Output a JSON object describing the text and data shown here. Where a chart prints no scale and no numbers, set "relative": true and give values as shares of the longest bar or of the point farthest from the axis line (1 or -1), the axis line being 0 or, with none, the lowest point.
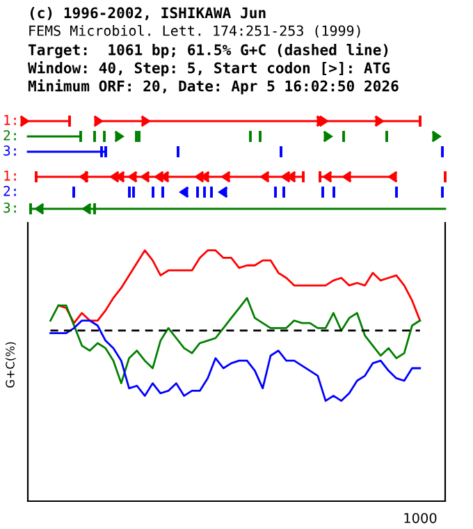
{
  "chart_data": [
    {
      "type": "line",
      "relative": true,
      "title": "(c) 1996-2002, ISHIKAWA Jun",
      "annotations": [
        "FEMS Microbiol. Lett. 174:251-253 (1999)",
        "Target:  1061 bp; 61.5% G+C (dashed line)",
        "Window: 40, Step: 5, Start codon [>]: ATG",
        "Minimum ORF: 20, Date: Apr 5 16:02:50 2026"
      ],
      "ylabel": "G+C(%)",
      "xlabel": "1000",
      "marker": "none",
      "line_style": "solid",
      "categories": [
        null,
        null,
        null,
        null,
        null,
        null,
        null,
        null,
        null,
        null,
        null,
        null,
        null,
        null,
        null,
        null,
        null,
        null,
        null,
        null,
        null,
        null,
        null,
        null,
        null,
        null,
        null,
        null,
        null,
        null,
        null,
        null,
        null,
        null,
        null,
        null,
        null,
        null,
        null,
        null,
        null,
        null,
        null,
        null,
        null,
        null,
        null,
        null
      ],
      "series": [
        {
          "color": "#ff0000",
          "values": [
            null,
            0.78,
            0.77,
            0.71,
            0.75,
            0.72,
            0.72,
            0.76,
            0.81,
            0.85,
            0.9,
            0.95,
            1.0,
            0.96,
            0.9,
            0.92,
            0.92,
            0.92,
            0.92,
            0.97,
            1.0,
            1.0,
            0.97,
            0.97,
            0.93,
            0.94,
            0.94,
            0.96,
            0.96,
            0.91,
            0.89,
            0.86,
            0.86,
            0.86,
            0.86,
            0.86,
            0.88,
            0.89,
            0.86,
            0.87,
            0.86,
            0.91,
            0.88,
            0.89,
            0.9,
            0.86,
            0.8,
            0.72
          ]
        },
        {
          "color": "#008000",
          "values": [
            0.72,
            0.78,
            0.78,
            0.7,
            0.62,
            0.6,
            0.63,
            0.61,
            0.56,
            0.47,
            0.57,
            0.6,
            0.56,
            0.53,
            0.64,
            0.69,
            0.65,
            0.61,
            0.59,
            0.63,
            0.64,
            0.65,
            0.69,
            0.73,
            0.77,
            0.81,
            0.73,
            0.71,
            0.69,
            0.69,
            0.69,
            0.72,
            0.71,
            0.71,
            0.69,
            0.69,
            0.75,
            0.68,
            0.73,
            0.75,
            0.66,
            0.62,
            0.58,
            0.61,
            0.57,
            0.59,
            0.7,
            0.72
          ]
        },
        {
          "color": "#0000ff",
          "values": [
            0.67,
            0.67,
            0.67,
            0.69,
            0.72,
            0.72,
            0.7,
            0.64,
            0.61,
            0.56,
            0.45,
            0.46,
            0.42,
            0.47,
            0.43,
            0.44,
            0.47,
            0.42,
            0.44,
            0.44,
            0.49,
            0.57,
            0.53,
            0.55,
            0.56,
            0.56,
            0.52,
            0.45,
            0.58,
            0.6,
            0.56,
            0.56,
            0.54,
            0.52,
            0.5,
            0.4,
            0.42,
            0.4,
            0.43,
            0.48,
            0.5,
            0.55,
            0.56,
            0.52,
            0.49,
            0.48,
            0.53,
            0.53
          ]
        },
        {
          "color": "#000000",
          "line_style": "dashed",
          "values": [
            0.68,
            0.68,
            0.68,
            0.68,
            0.68,
            0.68,
            0.68,
            0.68,
            0.68,
            0.68,
            0.68,
            0.68,
            0.68,
            0.68,
            0.68,
            0.68,
            0.68,
            0.68,
            0.68,
            0.68,
            0.68,
            0.68,
            0.68,
            0.68,
            0.68,
            0.68,
            0.68,
            0.68,
            0.68,
            0.68,
            0.68,
            0.68,
            0.68,
            0.68,
            0.68,
            0.68,
            0.68,
            0.68,
            0.68,
            0.68,
            0.68,
            0.68,
            0.68,
            0.68,
            0.68,
            0.68,
            0.68,
            0.68
          ]
        }
      ]
    },
    {
      "type": "other",
      "annotations": [
        "1:",
        "2:",
        "3:",
        "1:",
        "2:",
        "3:"
      ],
      "colors": [
        "#ff0000",
        "#008000",
        "#0000ff",
        "#ff0000",
        "#0000ff",
        "#008000"
      ]
    }
  ]
}
